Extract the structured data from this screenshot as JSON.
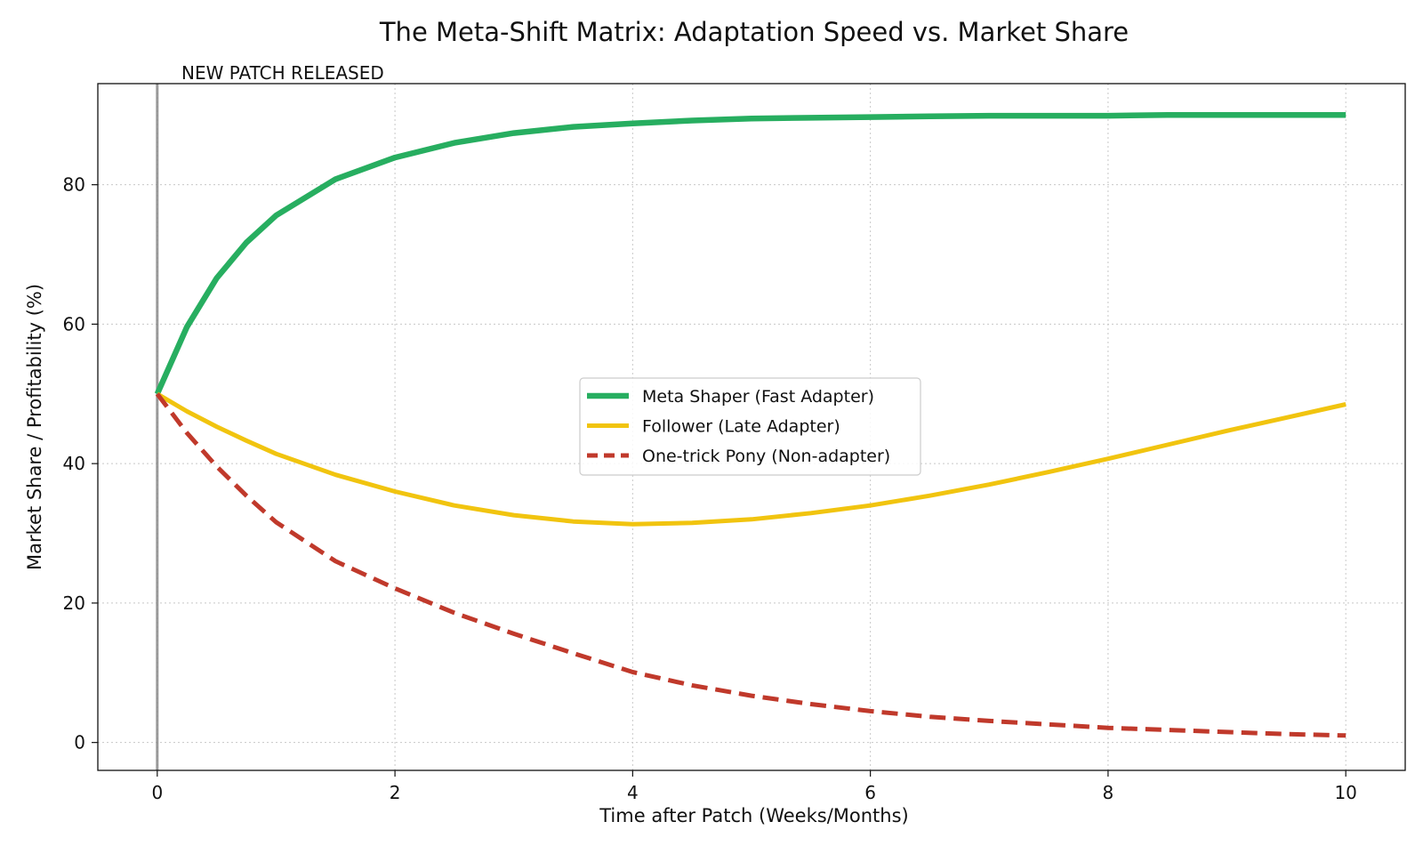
{
  "chart_data": {
    "type": "line",
    "title": "The Meta-Shift Matrix: Adaptation Speed vs. Market Share",
    "xlabel": "Time after Patch (Weeks/Months)",
    "ylabel": "Market Share / Profitability (%)",
    "xlim": [
      -0.5,
      10.5
    ],
    "ylim": [
      -4,
      94.5
    ],
    "xticks": [
      0,
      2,
      4,
      6,
      8,
      10
    ],
    "yticks": [
      0,
      20,
      40,
      60,
      80
    ],
    "grid": true,
    "legend_position": "center",
    "annotation": {
      "text": "NEW PATCH RELEASED",
      "x": 0
    },
    "x": [
      0,
      0.25,
      0.5,
      0.75,
      1,
      1.5,
      2,
      2.5,
      3,
      3.5,
      4,
      4.5,
      5,
      5.5,
      6,
      6.5,
      7,
      7.5,
      8,
      8.5,
      9,
      9.5,
      10
    ],
    "series": [
      {
        "name": "Meta Shaper (Fast Adapter)",
        "color": "#27ae60",
        "style": "solid",
        "width": "thick",
        "values": [
          50,
          59.6,
          66.6,
          71.7,
          75.6,
          80.8,
          83.9,
          86.0,
          87.4,
          88.3,
          88.8,
          89.2,
          89.5,
          89.6,
          89.7,
          89.8,
          89.9,
          89.9,
          89.9,
          90.0,
          90.0,
          90.0,
          90.0
        ]
      },
      {
        "name": "Follower (Late Adapter)",
        "color": "#f1c40f",
        "style": "solid",
        "width": "normal",
        "values": [
          50,
          47.5,
          45.3,
          43.3,
          41.4,
          38.4,
          36.0,
          34.0,
          32.6,
          31.7,
          31.3,
          31.5,
          32.0,
          32.9,
          34.0,
          35.4,
          37.0,
          38.8,
          40.7,
          42.7,
          44.7,
          46.6,
          48.5
        ]
      },
      {
        "name": "One-trick Pony (Non-adapter)",
        "color": "#c0392b",
        "style": "dashed",
        "width": "normal",
        "values": [
          50,
          44.4,
          39.6,
          35.4,
          31.6,
          26.0,
          22.1,
          18.6,
          15.6,
          12.8,
          10.1,
          8.2,
          6.7,
          5.5,
          4.5,
          3.7,
          3.1,
          2.6,
          2.1,
          1.8,
          1.5,
          1.2,
          1.0
        ]
      }
    ]
  }
}
